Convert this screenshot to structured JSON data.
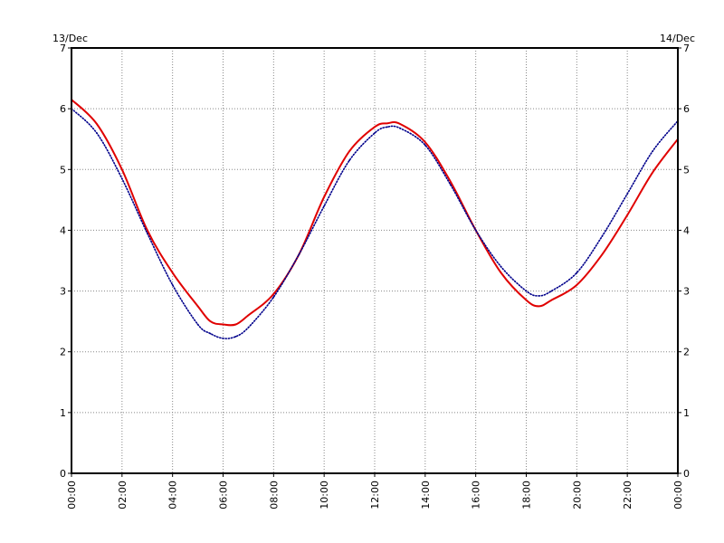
{
  "chart_data": {
    "type": "line",
    "date_labels": {
      "left": "13/Dec",
      "right": "14/Dec"
    },
    "x_ticks": [
      "00:00",
      "02:00",
      "04:00",
      "06:00",
      "08:00",
      "10:00",
      "12:00",
      "14:00",
      "16:00",
      "18:00",
      "20:00",
      "22:00",
      "00:00"
    ],
    "y_ticks": [
      "0",
      "1",
      "2",
      "3",
      "4",
      "5",
      "6",
      "7"
    ],
    "xlim": [
      0,
      24
    ],
    "ylim": [
      0,
      7
    ],
    "grid": true,
    "series": [
      {
        "color": "#e00000",
        "style": "solid",
        "points": [
          [
            0.0,
            6.15
          ],
          [
            1.0,
            5.75
          ],
          [
            2.0,
            5.0
          ],
          [
            3.0,
            4.0
          ],
          [
            4.0,
            3.3
          ],
          [
            5.0,
            2.75
          ],
          [
            5.5,
            2.5
          ],
          [
            6.0,
            2.45
          ],
          [
            6.5,
            2.45
          ],
          [
            7.0,
            2.6
          ],
          [
            8.0,
            2.95
          ],
          [
            9.0,
            3.6
          ],
          [
            10.0,
            4.55
          ],
          [
            11.0,
            5.3
          ],
          [
            12.0,
            5.7
          ],
          [
            12.5,
            5.76
          ],
          [
            13.0,
            5.75
          ],
          [
            14.0,
            5.45
          ],
          [
            15.0,
            4.8
          ],
          [
            16.0,
            4.0
          ],
          [
            17.0,
            3.3
          ],
          [
            18.0,
            2.85
          ],
          [
            18.5,
            2.75
          ],
          [
            19.0,
            2.85
          ],
          [
            20.0,
            3.1
          ],
          [
            21.0,
            3.6
          ],
          [
            22.0,
            4.25
          ],
          [
            23.0,
            4.95
          ],
          [
            24.0,
            5.5
          ]
        ]
      },
      {
        "color": "#00008b",
        "style": "dotted",
        "points": [
          [
            0.0,
            6.0
          ],
          [
            1.0,
            5.6
          ],
          [
            2.0,
            4.85
          ],
          [
            3.0,
            3.95
          ],
          [
            4.0,
            3.1
          ],
          [
            5.0,
            2.45
          ],
          [
            5.5,
            2.3
          ],
          [
            6.0,
            2.22
          ],
          [
            6.5,
            2.25
          ],
          [
            7.0,
            2.4
          ],
          [
            8.0,
            2.9
          ],
          [
            9.0,
            3.6
          ],
          [
            10.0,
            4.4
          ],
          [
            11.0,
            5.15
          ],
          [
            12.0,
            5.6
          ],
          [
            12.5,
            5.7
          ],
          [
            13.0,
            5.68
          ],
          [
            14.0,
            5.4
          ],
          [
            15.0,
            4.75
          ],
          [
            16.0,
            4.0
          ],
          [
            17.0,
            3.4
          ],
          [
            18.0,
            3.0
          ],
          [
            18.5,
            2.92
          ],
          [
            19.0,
            3.0
          ],
          [
            20.0,
            3.3
          ],
          [
            21.0,
            3.9
          ],
          [
            22.0,
            4.6
          ],
          [
            23.0,
            5.3
          ],
          [
            24.0,
            5.8
          ]
        ]
      }
    ]
  }
}
